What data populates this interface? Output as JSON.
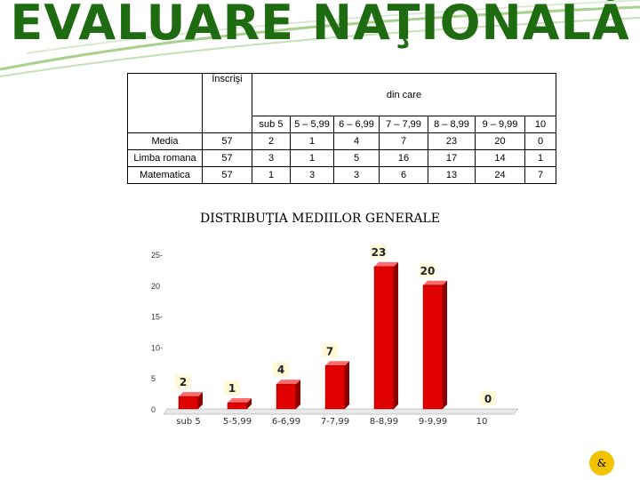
{
  "header": {
    "title": "EVALUARE NAŢIONALĂ"
  },
  "table": {
    "enrolled_label": "Înscrişi",
    "of_which_label": "din care",
    "ranges": [
      "sub 5",
      "5 – 5,99",
      "6 – 6,99",
      "7 – 7,99",
      "8 – 8,99",
      "9 – 9,99",
      "10"
    ],
    "rows": [
      {
        "label": "Media",
        "enrolled": "57",
        "values": [
          "2",
          "1",
          "4",
          "7",
          "23",
          "20",
          "0"
        ]
      },
      {
        "label": "Limba romana",
        "enrolled": "57",
        "values": [
          "3",
          "1",
          "5",
          "16",
          "17",
          "14",
          "1"
        ]
      },
      {
        "label": "Matematica",
        "enrolled": "57",
        "values": [
          "1",
          "3",
          "3",
          "6",
          "13",
          "24",
          "7"
        ]
      }
    ]
  },
  "chart_title": "DISTRIBUŢIA MEDIILOR GENERALE",
  "chart_data": {
    "type": "bar",
    "categories": [
      "sub 5",
      "5-5,99",
      "6-6,99",
      "7-7,99",
      "8-8,99",
      "9-9,99",
      "10"
    ],
    "values": [
      2,
      1,
      4,
      7,
      23,
      20,
      0
    ],
    "yticks": [
      "0",
      "5",
      "10-",
      "15-",
      "20",
      "25-"
    ],
    "ylim": [
      0,
      25
    ],
    "bar_color": "#e00000",
    "label_box_color": "#fff9d8",
    "grid": false
  },
  "footer": {
    "logo_text": "&"
  }
}
